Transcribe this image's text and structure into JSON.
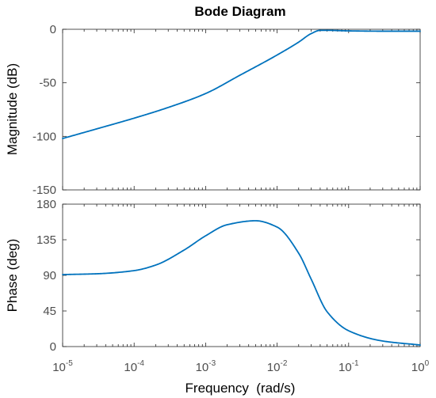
{
  "chart_data": {
    "type": "line",
    "title": "Bode Diagram",
    "xlabel": "Frequency  (rad/s)",
    "x_scale": "log",
    "xlim": [
      1e-05,
      1
    ],
    "x_ticks": [
      {
        "base": "10",
        "exp": "-5"
      },
      {
        "base": "10",
        "exp": "-4"
      },
      {
        "base": "10",
        "exp": "-3"
      },
      {
        "base": "10",
        "exp": "-2"
      },
      {
        "base": "10",
        "exp": "-1"
      },
      {
        "base": "10",
        "exp": "0"
      }
    ],
    "color": "#0072bd",
    "panels": [
      {
        "ylabel": "Magnitude (dB)",
        "ylim": [
          -150,
          0
        ],
        "yticks": [
          "0",
          "-50",
          "-100",
          "-150"
        ],
        "x": [
          1e-05,
          3e-05,
          0.0001,
          0.0003,
          0.001,
          0.003,
          0.01,
          0.02,
          0.03,
          0.04,
          0.05,
          0.1,
          0.3,
          1
        ],
        "y": [
          -102,
          -93,
          -83,
          -73,
          -60,
          -43,
          -24,
          -12,
          -4,
          -1,
          -1,
          -1.5,
          -1.8,
          -1.8
        ]
      },
      {
        "ylabel": "Phase (deg)",
        "ylim": [
          0,
          180
        ],
        "yticks": [
          "180",
          "135",
          "90",
          "45",
          "0"
        ],
        "x": [
          1e-05,
          3e-05,
          0.0001,
          0.0002,
          0.0005,
          0.001,
          0.002,
          0.005,
          0.01,
          0.02,
          0.03,
          0.05,
          0.1,
          0.3,
          1
        ],
        "y": [
          91,
          92,
          96,
          103,
          122,
          140,
          154,
          159,
          151,
          118,
          85,
          44,
          20,
          7,
          2
        ]
      }
    ]
  }
}
